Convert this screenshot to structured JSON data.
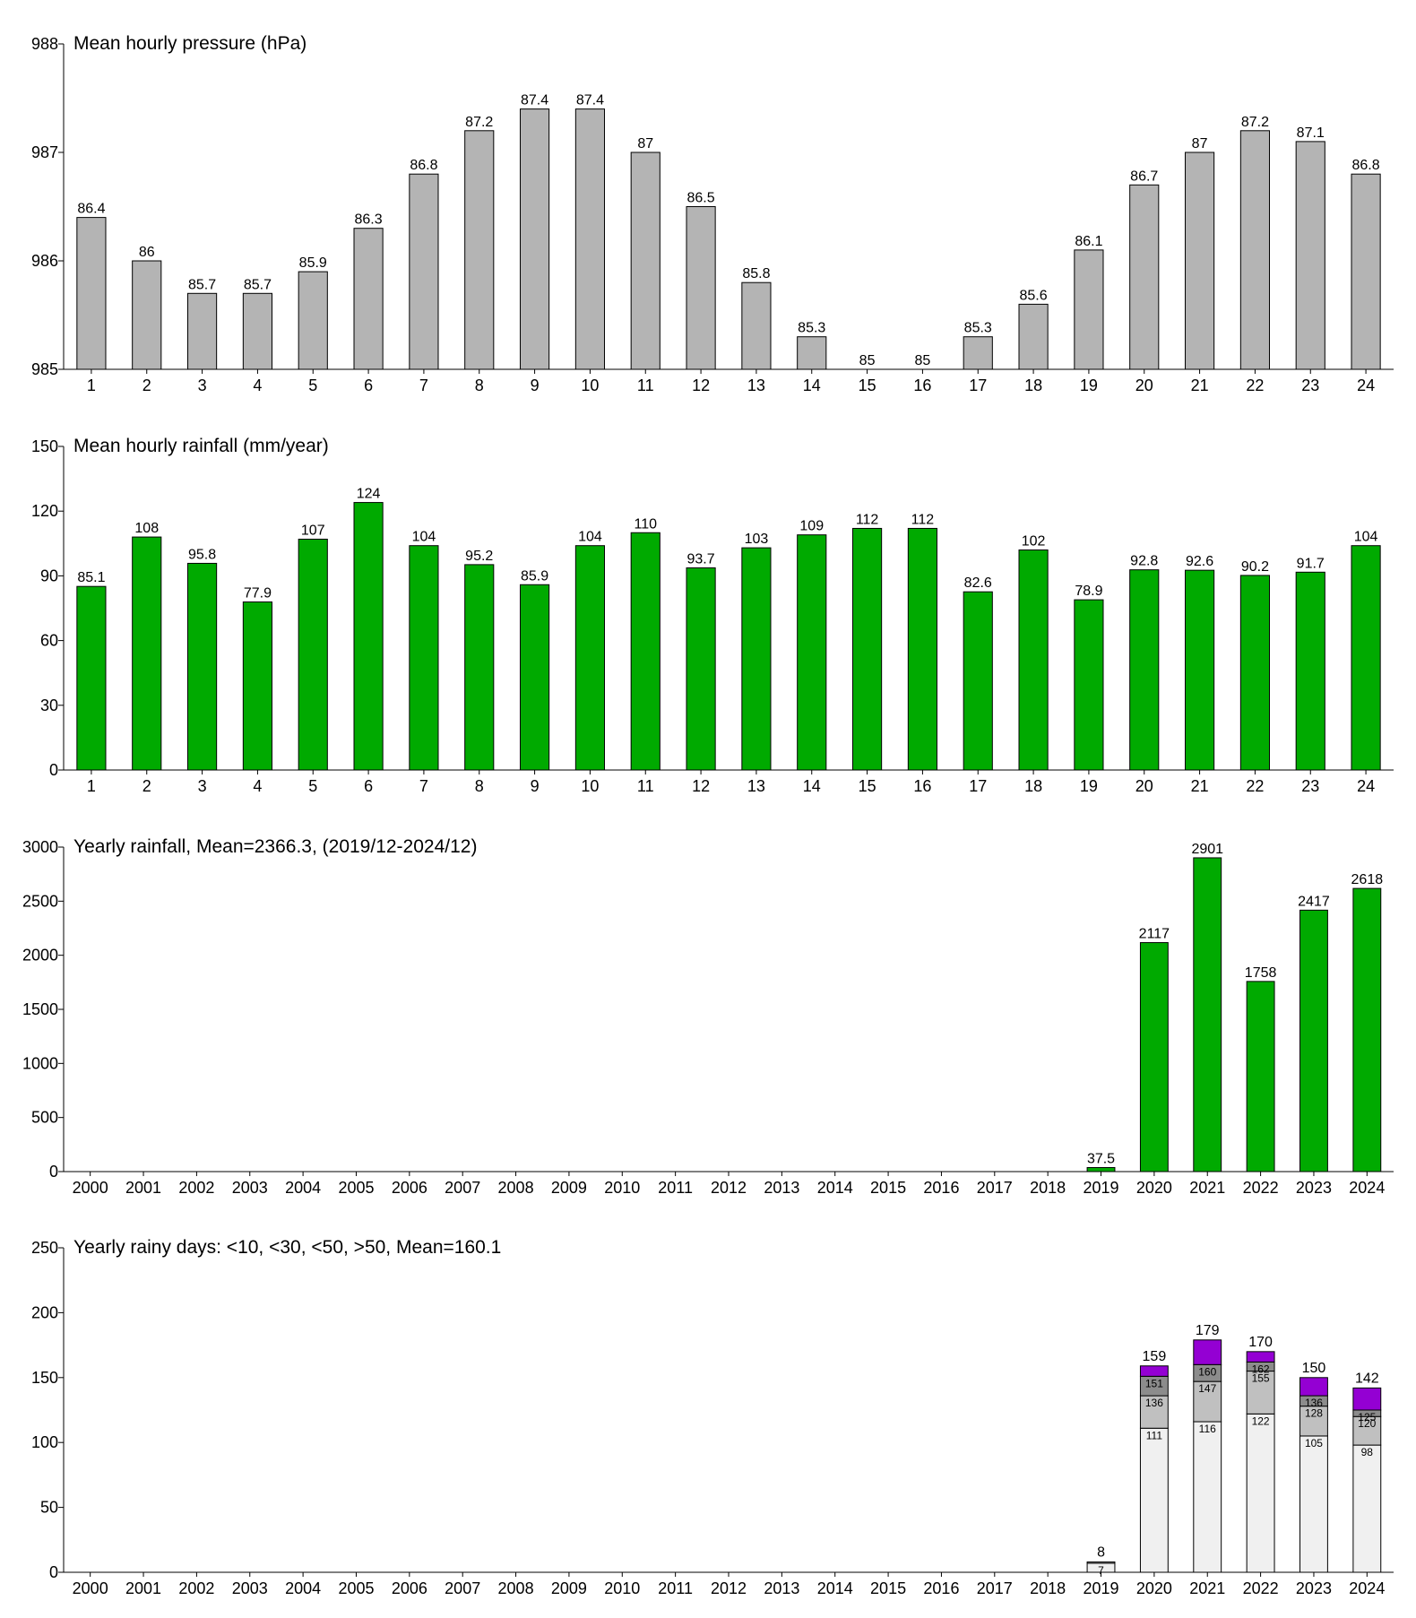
{
  "chart_data": [
    {
      "type": "bar",
      "title": "Mean hourly pressure (hPa)",
      "color": "#b4b4b4",
      "categories": [
        "1",
        "2",
        "3",
        "4",
        "5",
        "6",
        "7",
        "8",
        "9",
        "10",
        "11",
        "12",
        "13",
        "14",
        "15",
        "16",
        "17",
        "18",
        "19",
        "20",
        "21",
        "22",
        "23",
        "24"
      ],
      "values": [
        986.4,
        986,
        985.7,
        985.7,
        985.9,
        986.3,
        986.8,
        987.2,
        987.4,
        987.4,
        987,
        986.5,
        985.8,
        985.3,
        985,
        985,
        985.3,
        985.6,
        986.1,
        986.7,
        987,
        987.2,
        987.1,
        986.8
      ],
      "value_labels": [
        "86.4",
        "86",
        "85.7",
        "85.7",
        "85.9",
        "86.3",
        "86.8",
        "87.2",
        "87.4",
        "87.4",
        "87",
        "86.5",
        "85.8",
        "85.3",
        "85",
        "85",
        "85.3",
        "85.6",
        "86.1",
        "86.7",
        "87",
        "87.2",
        "87.1",
        "86.8"
      ],
      "ylim": [
        985,
        988
      ],
      "yticks": [
        985,
        986,
        987,
        988
      ]
    },
    {
      "type": "bar",
      "title": "Mean hourly rainfall (mm/year)",
      "color": "#00aa00",
      "categories": [
        "1",
        "2",
        "3",
        "4",
        "5",
        "6",
        "7",
        "8",
        "9",
        "10",
        "11",
        "12",
        "13",
        "14",
        "15",
        "16",
        "17",
        "18",
        "19",
        "20",
        "21",
        "22",
        "23",
        "24"
      ],
      "values": [
        85.1,
        108,
        95.8,
        77.9,
        107,
        124,
        104,
        95.2,
        85.9,
        104,
        110,
        93.7,
        103,
        109,
        112,
        112,
        82.6,
        102,
        78.9,
        92.8,
        92.6,
        90.2,
        91.7,
        104
      ],
      "ylim": [
        0,
        150
      ],
      "yticks": [
        0,
        30,
        60,
        90,
        120,
        150
      ]
    },
    {
      "type": "bar",
      "title": "Yearly rainfall, Mean=2366.3, (2019/12-2024/12)",
      "color": "#00aa00",
      "categories": [
        "2000",
        "2001",
        "2002",
        "2003",
        "2004",
        "2005",
        "2006",
        "2007",
        "2008",
        "2009",
        "2010",
        "2011",
        "2012",
        "2013",
        "2014",
        "2015",
        "2016",
        "2017",
        "2018",
        "2019",
        "2020",
        "2021",
        "2022",
        "2023",
        "2024"
      ],
      "values": [
        null,
        null,
        null,
        null,
        null,
        null,
        null,
        null,
        null,
        null,
        null,
        null,
        null,
        null,
        null,
        null,
        null,
        null,
        null,
        37.5,
        2117,
        2901,
        1758,
        2417,
        2618
      ],
      "ylim": [
        0,
        3000
      ],
      "yticks": [
        0,
        500,
        1000,
        1500,
        2000,
        2500,
        3000
      ]
    },
    {
      "type": "stacked_bar",
      "title": "Yearly rainy days: <10, <30, <50, >50, Mean=160.1",
      "categories": [
        "2000",
        "2001",
        "2002",
        "2003",
        "2004",
        "2005",
        "2006",
        "2007",
        "2008",
        "2009",
        "2010",
        "2011",
        "2012",
        "2013",
        "2014",
        "2015",
        "2016",
        "2017",
        "2018",
        "2019",
        "2020",
        "2021",
        "2022",
        "2023",
        "2024"
      ],
      "series": [
        {
          "color": "#f0f0f0",
          "values": [
            null,
            null,
            null,
            null,
            null,
            null,
            null,
            null,
            null,
            null,
            null,
            null,
            null,
            null,
            null,
            null,
            null,
            null,
            null,
            7,
            111,
            116,
            122,
            105,
            98
          ],
          "segment_labels": [
            null,
            null,
            null,
            null,
            null,
            null,
            null,
            null,
            null,
            null,
            null,
            null,
            null,
            null,
            null,
            null,
            null,
            null,
            null,
            "7",
            "111",
            "116",
            "122",
            "105",
            "98"
          ]
        },
        {
          "color": "#c0c0c0",
          "values": [
            null,
            null,
            null,
            null,
            null,
            null,
            null,
            null,
            null,
            null,
            null,
            null,
            null,
            null,
            null,
            null,
            null,
            null,
            null,
            1,
            25,
            31,
            33,
            23,
            22
          ],
          "segment_labels": [
            null,
            null,
            null,
            null,
            null,
            null,
            null,
            null,
            null,
            null,
            null,
            null,
            null,
            null,
            null,
            null,
            null,
            null,
            null,
            null,
            "136",
            "147",
            "155",
            "128",
            "120"
          ]
        },
        {
          "color": "#8c8c8c",
          "values": [
            null,
            null,
            null,
            null,
            null,
            null,
            null,
            null,
            null,
            null,
            null,
            null,
            null,
            null,
            null,
            null,
            null,
            null,
            null,
            0,
            15,
            13,
            7,
            8,
            5
          ],
          "segment_labels": [
            null,
            null,
            null,
            null,
            null,
            null,
            null,
            null,
            null,
            null,
            null,
            null,
            null,
            null,
            null,
            null,
            null,
            null,
            null,
            null,
            "151",
            "160",
            "162",
            "136",
            "125"
          ]
        },
        {
          "color": "#9400d3",
          "values": [
            null,
            null,
            null,
            null,
            null,
            null,
            null,
            null,
            null,
            null,
            null,
            null,
            null,
            null,
            null,
            null,
            null,
            null,
            null,
            0,
            8,
            19,
            8,
            14,
            17
          ]
        }
      ],
      "totals": [
        null,
        null,
        null,
        null,
        null,
        null,
        null,
        null,
        null,
        null,
        null,
        null,
        null,
        null,
        null,
        null,
        null,
        null,
        null,
        8,
        159,
        179,
        170,
        150,
        142
      ],
      "ylim": [
        0,
        250
      ],
      "yticks": [
        0,
        50,
        100,
        150,
        200,
        250
      ]
    }
  ]
}
